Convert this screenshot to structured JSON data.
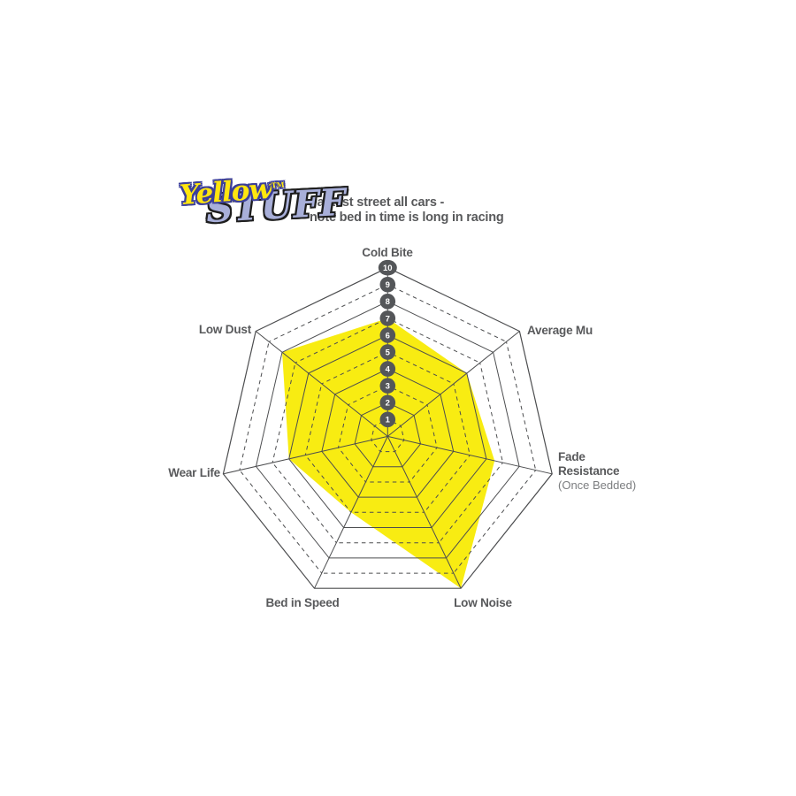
{
  "logo": {
    "yellow": "Yellow",
    "tm": "TM",
    "stuff": "STUFF"
  },
  "tagline": {
    "line1": "Fastest street all cars -",
    "line2": "note bed in time is long in racing"
  },
  "chart_data": {
    "type": "radar",
    "rings": 10,
    "scale_min": 1,
    "scale_max": 10,
    "scale_labels": [
      "1",
      "2",
      "3",
      "4",
      "5",
      "6",
      "7",
      "8",
      "9",
      "10"
    ],
    "grid_style": "heptagon rings: even rings solid, odd rings dashed; radial axes solid",
    "legend_position": "none",
    "categories": [
      "Cold Bite",
      "Average Mu",
      "Fade Resistance",
      "Low Noise",
      "Bed in Speed",
      "Wear Life",
      "Low Dust"
    ],
    "category_sublabels": [
      "",
      "",
      "(Once Bedded)",
      "",
      "",
      "",
      ""
    ],
    "series": [
      {
        "name": "Yellowstuff",
        "values": [
          7,
          6,
          6.5,
          10,
          5,
          6,
          8
        ]
      }
    ],
    "colors": {
      "series_fill": "#f8ec12",
      "grid": "#4c4d4f",
      "badge": "#545659",
      "badge_text": "#ffffff",
      "label": "#58595b",
      "sublabel": "#7c7e80",
      "logo_yellow": "#ffe60e",
      "logo_outline": "#3c3f99",
      "logo_stuff": "#a8afd9"
    }
  }
}
